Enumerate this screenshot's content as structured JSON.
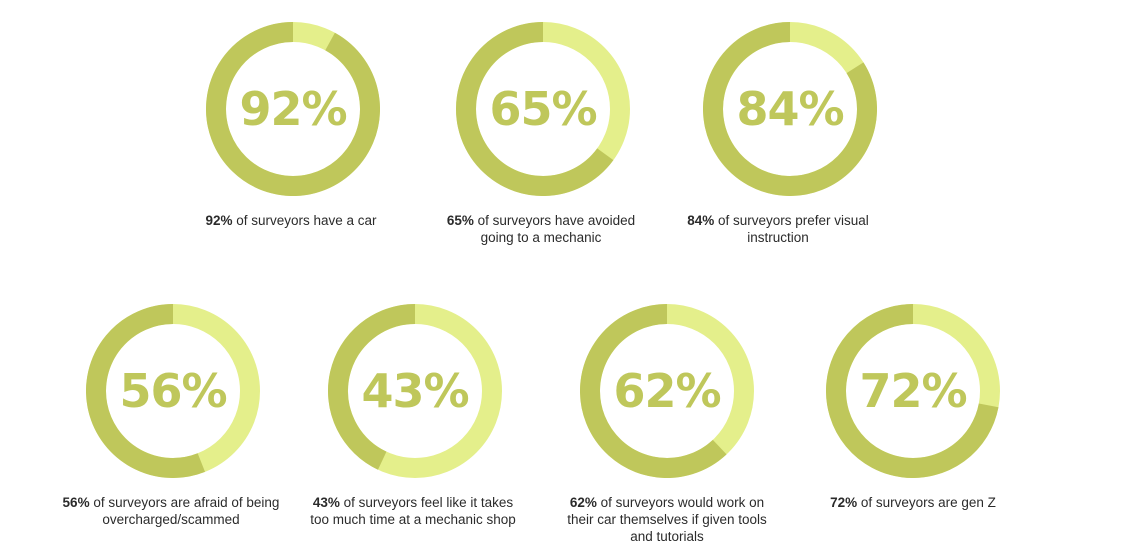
{
  "colors": {
    "dark": "#bfc75b",
    "light": "#e4ef8b",
    "text": "#bfc75b"
  },
  "chart_data": {
    "type": "pie",
    "items": [
      {
        "value": 92,
        "label": "92%",
        "bold": "92%",
        "text": " of surveyors have a car"
      },
      {
        "value": 65,
        "label": "65%",
        "bold": "65%",
        "text": " of surveyors have avoided going to a mechanic"
      },
      {
        "value": 84,
        "label": "84%",
        "bold": "84%",
        "text": " of surveyors prefer visual instruction"
      },
      {
        "value": 56,
        "label": "56%",
        "bold": "56%",
        "text": " of surveyors are afraid of being overcharged/scammed"
      },
      {
        "value": 43,
        "label": "43%",
        "bold": "43%",
        "text": " of surveyors feel like it takes too much time at a mechanic shop"
      },
      {
        "value": 62,
        "label": "62%",
        "bold": "62%",
        "text": " of surveyors would work on their car themselves if given tools and tutorials"
      },
      {
        "value": 72,
        "label": "72%",
        "bold": "72%",
        "text": " of surveyors are gen Z"
      }
    ]
  }
}
